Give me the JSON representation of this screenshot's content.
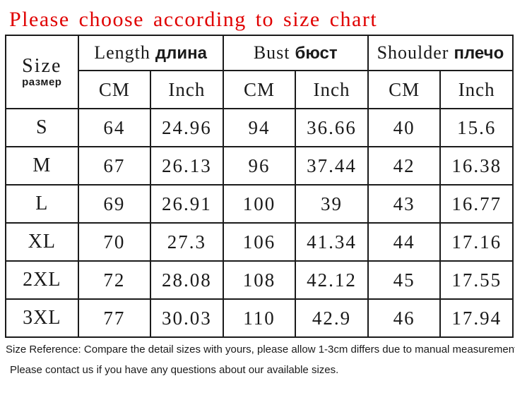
{
  "title": "Please choose according to size chart",
  "colors": {
    "title_red": "#e00000",
    "border": "#1b1b1b",
    "text": "#1a1a1a"
  },
  "table": {
    "size_header": {
      "en": "Size",
      "ru": "размер"
    },
    "groups": [
      {
        "en": "Length",
        "ru": "длина"
      },
      {
        "en": "Bust",
        "ru": "бюст"
      },
      {
        "en": "Shoulder",
        "ru": "плечо"
      }
    ],
    "unit_headers": [
      "CM",
      "Inch",
      "CM",
      "Inch",
      "CM",
      "Inch"
    ],
    "rows": [
      {
        "size": "S",
        "cells": [
          "64",
          "24.96",
          "94",
          "36.66",
          "40",
          "15.6"
        ]
      },
      {
        "size": "M",
        "cells": [
          "67",
          "26.13",
          "96",
          "37.44",
          "42",
          "16.38"
        ]
      },
      {
        "size": "L",
        "cells": [
          "69",
          "26.91",
          "100",
          "39",
          "43",
          "16.77"
        ]
      },
      {
        "size": "XL",
        "cells": [
          "70",
          "27.3",
          "106",
          "41.34",
          "44",
          "17.16"
        ]
      },
      {
        "size": "2XL",
        "cells": [
          "72",
          "28.08",
          "108",
          "42.12",
          "45",
          "17.55"
        ]
      },
      {
        "size": "3XL",
        "cells": [
          "77",
          "30.03",
          "110",
          "42.9",
          "46",
          "17.94"
        ]
      }
    ]
  },
  "footer": {
    "line1": "Size Reference: Compare the detail sizes with yours, please allow 1-3cm differs due to manual measurement, thanks!",
    "line2": "Please contact us if you have any questions about our available sizes."
  }
}
